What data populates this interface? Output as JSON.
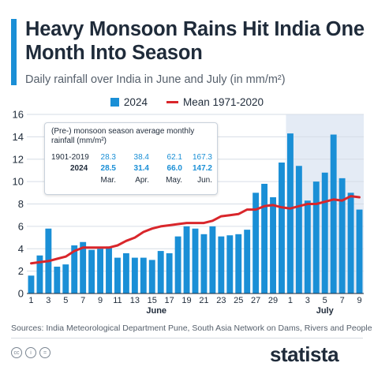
{
  "title": "Heavy Monsoon Rains Hit India One Month Into Season",
  "subtitle": "Daily rainfall over India in June and July (in mm/m²)",
  "legend": {
    "bars": "2024",
    "line": "Mean 1971-2020"
  },
  "colors": {
    "bar": "#1a8fd6",
    "line": "#d9262b",
    "shade": "#e4ebf5"
  },
  "inset": {
    "title": "(Pre-) monsoon season average monthly rainfall (mm/m²)",
    "rows": [
      {
        "label": "1901-2019",
        "values": [
          "28.3",
          "38.4",
          "62.1",
          "167.3"
        ]
      },
      {
        "label": "2024",
        "values": [
          "28.5",
          "31.4",
          "66.0",
          "147.2"
        ]
      }
    ],
    "months": [
      "Mar.",
      "Apr.",
      "May.",
      "Jun."
    ]
  },
  "chart_data": {
    "type": "bar",
    "bar_series": "2024",
    "line_series": "Mean 1971-2020",
    "x_tick_labels": [
      "1",
      "3",
      "5",
      "7",
      "9",
      "11",
      "13",
      "15",
      "17",
      "19",
      "21",
      "23",
      "25",
      "27",
      "29",
      "1",
      "3",
      "5",
      "7",
      "9"
    ],
    "month_labels": [
      "June",
      "July"
    ],
    "shaded_region": "July",
    "ylim": [
      0,
      16
    ],
    "yticks": [
      0,
      2,
      4,
      6,
      8,
      10,
      12,
      14,
      16
    ],
    "grid": true,
    "categories": [
      "Jun 1",
      "Jun 2",
      "Jun 3",
      "Jun 4",
      "Jun 5",
      "Jun 6",
      "Jun 7",
      "Jun 8",
      "Jun 9",
      "Jun 10",
      "Jun 11",
      "Jun 12",
      "Jun 13",
      "Jun 14",
      "Jun 15",
      "Jun 16",
      "Jun 17",
      "Jun 18",
      "Jun 19",
      "Jun 20",
      "Jun 21",
      "Jun 22",
      "Jun 23",
      "Jun 24",
      "Jun 25",
      "Jun 26",
      "Jun 27",
      "Jun 28",
      "Jun 29",
      "Jun 30",
      "Jul 1",
      "Jul 2",
      "Jul 3",
      "Jul 4",
      "Jul 5",
      "Jul 6",
      "Jul 7",
      "Jul 8",
      "Jul 9"
    ],
    "values_2024": [
      1.6,
      3.4,
      5.8,
      2.4,
      2.6,
      4.3,
      4.6,
      3.9,
      4.0,
      4.2,
      3.2,
      3.6,
      3.2,
      3.2,
      3.0,
      3.8,
      3.6,
      5.1,
      6.0,
      5.8,
      5.3,
      6.0,
      5.1,
      5.2,
      5.3,
      5.7,
      9.0,
      9.8,
      8.6,
      11.7,
      14.3,
      11.4,
      8.3,
      10.0,
      10.8,
      14.2,
      10.3,
      9.0,
      7.5
    ],
    "values_mean": [
      2.7,
      2.8,
      2.9,
      3.1,
      3.3,
      3.8,
      4.1,
      4.1,
      4.1,
      4.1,
      4.3,
      4.7,
      5.0,
      5.5,
      5.8,
      6.0,
      6.1,
      6.2,
      6.3,
      6.3,
      6.3,
      6.5,
      6.9,
      7.0,
      7.1,
      7.5,
      7.5,
      7.8,
      7.9,
      7.7,
      7.6,
      7.8,
      8.0,
      8.0,
      8.2,
      8.4,
      8.3,
      8.7,
      8.6
    ]
  },
  "footer": {
    "source": "Sources: India Meteorological Department Pune, South Asia Network on Dams, Rivers and People",
    "cc_icons": [
      "cc",
      "i",
      "="
    ],
    "logo": "statista"
  }
}
